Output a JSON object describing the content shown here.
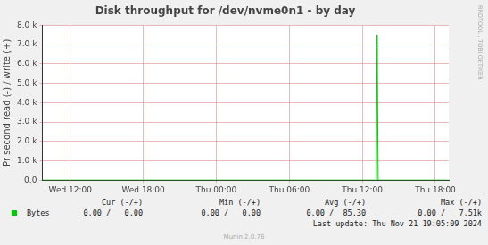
{
  "chart_data": {
    "type": "line",
    "title": "Disk throughput for /dev/nvme0n1 - by day",
    "y_label": "Pr second read (-) / write (+)",
    "watermark": "RRDTOOL / TOBI OETIKER",
    "x": [
      9.7,
      37.15,
      37.22,
      37.3,
      43.1
    ],
    "series": [
      {
        "name": "Bytes",
        "color": "#00cc00",
        "values": [
          0,
          0,
          7510,
          0,
          0
        ]
      }
    ],
    "xlim": [
      9.7,
      43.1
    ],
    "xticks": [
      {
        "value": 12,
        "label": "Wed 12:00"
      },
      {
        "value": 18,
        "label": "Wed 18:00"
      },
      {
        "value": 24,
        "label": "Thu 00:00"
      },
      {
        "value": 30,
        "label": "Thu 06:00"
      },
      {
        "value": 36,
        "label": "Thu 12:00"
      },
      {
        "value": 42,
        "label": "Thu 18:00"
      }
    ],
    "ylim": [
      0,
      8000
    ],
    "yticks": [
      {
        "value": 0,
        "label": "0.0"
      },
      {
        "value": 1000,
        "label": "1.0 k"
      },
      {
        "value": 2000,
        "label": "2.0 k"
      },
      {
        "value": 3000,
        "label": "3.0 k"
      },
      {
        "value": 4000,
        "label": "4.0 k"
      },
      {
        "value": 5000,
        "label": "5.0 k"
      },
      {
        "value": 6000,
        "label": "6.0 k"
      },
      {
        "value": 7000,
        "label": "7.0 k"
      },
      {
        "value": 8000,
        "label": "8.0 k"
      }
    ],
    "grid": true,
    "legend_table": {
      "headers": [
        "Cur (-/+)",
        "Min (-/+)",
        "Avg (-/+)",
        "Max (-/+)"
      ],
      "rows": [
        {
          "name": "Bytes",
          "cells": [
            "0.00 /   0.00",
            "0.00 /   0.00",
            "0.00 /  85.30",
            "0.00 /   7.51k"
          ]
        }
      ]
    },
    "last_update": "Last update: Thu Nov 21 19:05:09 2024",
    "footer": "Munin 2.0.76"
  }
}
